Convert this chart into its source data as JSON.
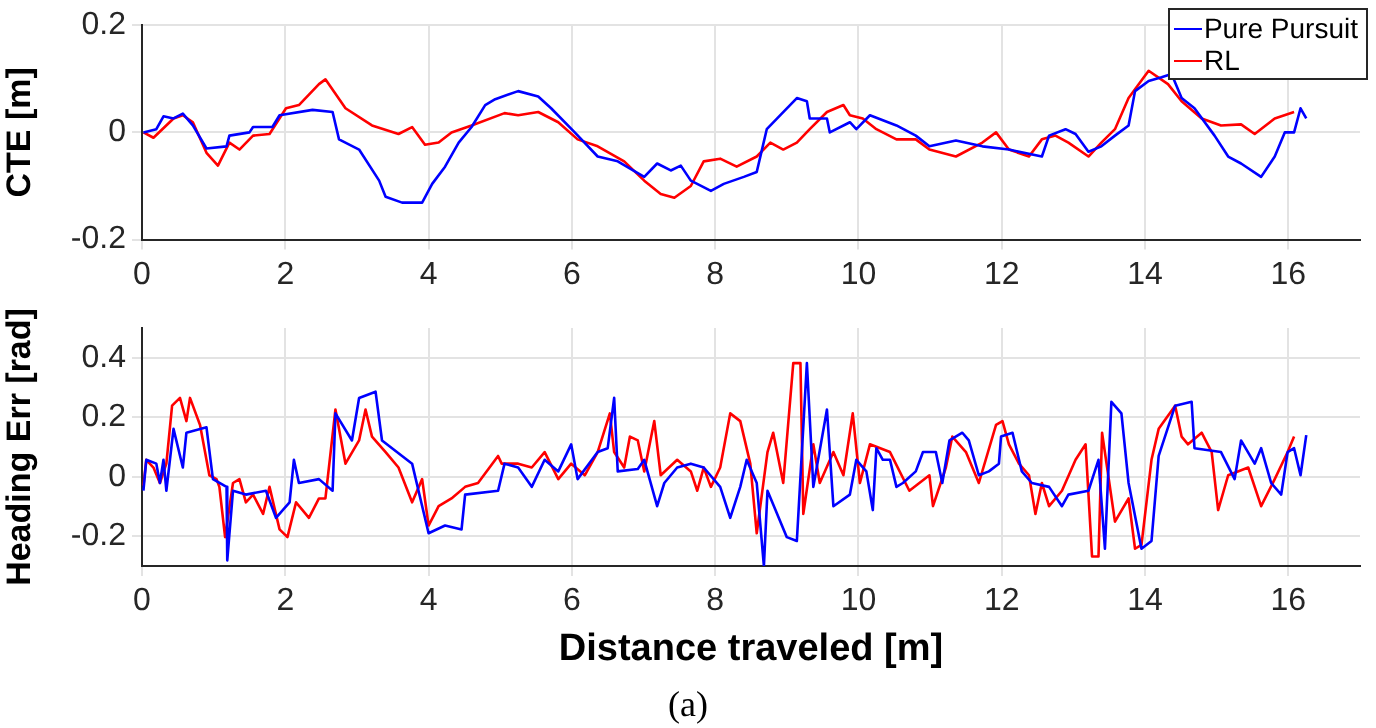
{
  "chart_data": [
    {
      "type": "line",
      "ylabel": "CTE [m]",
      "xlim": [
        0,
        17
      ],
      "xticks": [
        0,
        2,
        4,
        6,
        8,
        10,
        12,
        14,
        16
      ],
      "ylim": [
        -0.2,
        0.2
      ],
      "yticks": [
        -0.2,
        0,
        0.2
      ],
      "grid": true,
      "legend": "top right",
      "series": [
        {
          "name": "Pure Pursuit",
          "color": "#0000ff",
          "x": [
            0.02,
            0.2,
            0.3,
            0.44,
            0.57,
            0.71,
            0.9,
            1.18,
            1.22,
            1.5,
            1.55,
            1.82,
            1.92,
            2.38,
            2.66,
            2.75,
            3.03,
            3.31,
            3.4,
            3.63,
            3.91,
            4.05,
            4.23,
            4.42,
            4.6,
            4.79,
            4.93,
            5.25,
            5.53,
            5.71,
            6.04,
            6.36,
            6.64,
            7.01,
            7.19,
            7.38,
            7.52,
            7.66,
            7.94,
            8.12,
            8.4,
            8.58,
            8.72,
            8.95,
            9.14,
            9.28,
            9.32,
            9.56,
            9.6,
            9.88,
            9.97,
            10.16,
            10.53,
            10.8,
            10.99,
            11.36,
            11.73,
            12.1,
            12.56,
            12.66,
            12.89,
            13.03,
            13.21,
            13.39,
            13.58,
            13.77,
            13.86,
            14.05,
            14.23,
            14.37,
            14.51,
            14.69,
            14.97,
            15.16,
            15.34,
            15.62,
            15.81,
            15.95,
            16.08,
            16.17,
            16.25
          ],
          "values": [
            0,
            0.006,
            0.03,
            0.026,
            0.035,
            0.013,
            -0.03,
            -0.026,
            -0.006,
            0,
            0.01,
            0.01,
            0.032,
            0.042,
            0.038,
            -0.013,
            -0.032,
            -0.09,
            -0.12,
            -0.131,
            -0.131,
            -0.096,
            -0.064,
            -0.019,
            0.01,
            0.051,
            0.062,
            0.077,
            0.067,
            0.045,
            0,
            -0.045,
            -0.054,
            -0.083,
            -0.058,
            -0.071,
            -0.062,
            -0.09,
            -0.109,
            -0.096,
            -0.083,
            -0.074,
            0.006,
            0.038,
            0.064,
            0.058,
            0.026,
            0.026,
            0,
            0.019,
            0.006,
            0.032,
            0.013,
            -0.006,
            -0.026,
            -0.015,
            -0.026,
            -0.032,
            -0.045,
            -0.006,
            0.006,
            -0.003,
            -0.036,
            -0.026,
            -0.006,
            0.013,
            0.077,
            0.096,
            0.103,
            0.109,
            0.064,
            0.045,
            -0.006,
            -0.045,
            -0.058,
            -0.083,
            -0.045,
            0,
            0,
            0.045,
            0.026
          ]
        },
        {
          "name": "RL",
          "color": "#ff0000",
          "x": [
            0.02,
            0.16,
            0.44,
            0.57,
            0.71,
            0.9,
            1.06,
            1.22,
            1.36,
            1.55,
            1.78,
            2.01,
            2.19,
            2.47,
            2.56,
            2.84,
            3.21,
            3.58,
            3.77,
            3.95,
            4.14,
            4.32,
            4.6,
            5.06,
            5.25,
            5.53,
            5.81,
            6.08,
            6.36,
            6.73,
            7.01,
            7.24,
            7.43,
            7.66,
            7.84,
            8.07,
            8.3,
            8.58,
            8.77,
            8.95,
            9.14,
            9.32,
            9.56,
            9.79,
            9.88,
            10.06,
            10.25,
            10.53,
            10.8,
            10.99,
            11.36,
            11.73,
            11.92,
            12.1,
            12.38,
            12.56,
            12.75,
            12.93,
            13.21,
            13.39,
            13.58,
            13.77,
            14.05,
            14.32,
            14.51,
            14.79,
            15.06,
            15.34,
            15.53,
            15.81,
            16.08
          ],
          "values": [
            0,
            -0.01,
            0.026,
            0.032,
            0.019,
            -0.038,
            -0.062,
            -0.019,
            -0.032,
            -0.006,
            -0.003,
            0.045,
            0.051,
            0.09,
            0.099,
            0.045,
            0.013,
            -0.003,
            0.01,
            -0.023,
            -0.019,
            0,
            0.013,
            0.036,
            0.032,
            0.038,
            0.019,
            -0.013,
            -0.026,
            -0.054,
            -0.09,
            -0.115,
            -0.122,
            -0.1,
            -0.054,
            -0.049,
            -0.064,
            -0.045,
            -0.019,
            -0.032,
            -0.019,
            0.006,
            0.038,
            0.051,
            0.032,
            0.026,
            0.006,
            -0.013,
            -0.013,
            -0.032,
            -0.045,
            -0.019,
            0,
            -0.032,
            -0.045,
            -0.013,
            -0.006,
            -0.019,
            -0.045,
            -0.019,
            0.006,
            0.064,
            0.115,
            0.09,
            0.058,
            0.026,
            0.013,
            0.015,
            -0.003,
            0.026,
            0.038
          ]
        }
      ]
    },
    {
      "type": "line",
      "ylabel": "Heading Err [rad]",
      "xlabel": "Distance traveled [m]",
      "annotations": [
        "(a)"
      ],
      "xlim": [
        0,
        17
      ],
      "xticks": [
        0,
        2,
        4,
        6,
        8,
        10,
        12,
        14,
        16
      ],
      "ylim": [
        -0.3,
        0.5
      ],
      "yticks": [
        -0.2,
        0,
        0.2,
        0.4
      ],
      "grid": true,
      "series": [
        {
          "color": "#0000ff",
          "x": [
            0.02,
            0.06,
            0.2,
            0.25,
            0.3,
            0.34,
            0.44,
            0.57,
            0.62,
            0.9,
            0.99,
            1.18,
            1.19,
            1.27,
            1.45,
            1.73,
            1.87,
            2.06,
            2.12,
            2.19,
            2.47,
            2.66,
            2.7,
            2.93,
            3.03,
            3.26,
            3.35,
            3.77,
            4,
            4.23,
            4.46,
            4.51,
            4.97,
            5.06,
            5.25,
            5.44,
            5.62,
            5.81,
            5.99,
            6.08,
            6.36,
            6.5,
            6.59,
            6.64,
            6.92,
            7.01,
            7.19,
            7.29,
            7.47,
            7.66,
            7.84,
            8.07,
            8.21,
            8.35,
            8.44,
            8.58,
            8.68,
            8.73,
            9,
            9.14,
            9.28,
            9.37,
            9.56,
            9.65,
            9.88,
            9.97,
            10.11,
            10.2,
            10.25,
            10.34,
            10.44,
            10.53,
            10.62,
            10.8,
            10.9,
            11.08,
            11.17,
            11.27,
            11.45,
            11.54,
            11.68,
            11.82,
            11.96,
            11.99,
            12.15,
            12.28,
            12.42,
            12.66,
            12.84,
            12.93,
            13.21,
            13.35,
            13.44,
            13.53,
            13.67,
            13.77,
            13.95,
            14.09,
            14.19,
            14.42,
            14.65,
            14.69,
            15.06,
            15.25,
            15.34,
            15.53,
            15.62,
            15.76,
            15.9,
            15.99,
            16.08,
            16.17,
            16.25
          ],
          "values": [
            -0.047,
            0.057,
            0.044,
            -0.021,
            0.057,
            -0.047,
            0.161,
            0.031,
            0.148,
            0.166,
            -0.008,
            -0.034,
            -0.281,
            -0.047,
            -0.06,
            -0.047,
            -0.138,
            -0.086,
            0.057,
            -0.021,
            -0.008,
            -0.047,
            0.213,
            0.122,
            0.265,
            0.286,
            0.122,
            0.044,
            -0.19,
            -0.164,
            -0.177,
            -0.06,
            -0.047,
            0.044,
            0.031,
            -0.034,
            0.057,
            0.018,
            0.109,
            -0.008,
            0.083,
            0.096,
            0.265,
            0.018,
            0.026,
            0.057,
            -0.099,
            -0.021,
            0.031,
            0.044,
            0.031,
            -0.034,
            -0.138,
            -0.034,
            0.057,
            -0.021,
            -0.3,
            -0.047,
            -0.203,
            -0.216,
            0.382,
            -0.034,
            0.226,
            -0.099,
            -0.06,
            0.057,
            0.018,
            -0.112,
            0.096,
            0.057,
            0.057,
            -0.034,
            -0.021,
            0.018,
            0.083,
            0.083,
            -0.021,
            0.122,
            0.148,
            0.122,
            0.005,
            0.018,
            0.044,
            0.135,
            0.148,
            0.018,
            -0.021,
            -0.034,
            -0.099,
            -0.06,
            -0.047,
            0.057,
            -0.242,
            0.252,
            0.213,
            -0.021,
            -0.242,
            -0.216,
            0.07,
            0.239,
            0.252,
            0.096,
            0.083,
            -0.008,
            0.122,
            0.044,
            0.096,
            -0.021,
            -0.06,
            0.083,
            0.096,
            0.005,
            0.14
          ]
        },
        {
          "color": "#ff0000",
          "x": [
            0.02,
            0.06,
            0.16,
            0.25,
            0.34,
            0.42,
            0.53,
            0.62,
            0.67,
            0.81,
            0.94,
            1.04,
            1.08,
            1.16,
            1.27,
            1.36,
            1.45,
            1.55,
            1.69,
            1.78,
            1.92,
            2.03,
            2.15,
            2.33,
            2.47,
            2.56,
            2.7,
            2.84,
            3.03,
            3.12,
            3.21,
            3.4,
            3.58,
            3.77,
            3.91,
            4,
            4.14,
            4.32,
            4.51,
            4.69,
            4.97,
            5.02,
            5.25,
            5.44,
            5.62,
            5.81,
            5.99,
            6.18,
            6.36,
            6.53,
            6.59,
            6.73,
            6.81,
            6.92,
            7.01,
            7.15,
            7.24,
            7.47,
            7.66,
            7.75,
            7.84,
            7.94,
            8.07,
            8.21,
            8.35,
            8.49,
            8.58,
            8.73,
            8.81,
            8.95,
            9.09,
            9.19,
            9.23,
            9.37,
            9.46,
            9.65,
            9.79,
            9.92,
            10.02,
            10.16,
            10.44,
            10.71,
            10.99,
            11.04,
            11.22,
            11.31,
            11.5,
            11.68,
            11.92,
            12.01,
            12.1,
            12.24,
            12.38,
            12.47,
            12.56,
            12.66,
            12.84,
            13.03,
            13.17,
            13.26,
            13.35,
            13.4,
            13.58,
            13.77,
            13.86,
            13.95,
            14.09,
            14.19,
            14.42,
            14.51,
            14.6,
            14.79,
            14.93,
            15.02,
            15.16,
            15.44,
            15.62,
            15.81,
            15.99,
            16.08
          ],
          "values": [
            -0.03,
            0.057,
            0.031,
            -0.021,
            0.044,
            0.239,
            0.265,
            0.187,
            0.265,
            0.174,
            0.005,
            -0.008,
            -0.034,
            -0.203,
            -0.021,
            -0.008,
            -0.086,
            -0.06,
            -0.125,
            -0.034,
            -0.177,
            -0.203,
            -0.086,
            -0.138,
            -0.073,
            -0.073,
            0.226,
            0.044,
            0.122,
            0.226,
            0.135,
            0.083,
            0.031,
            -0.086,
            -0.008,
            -0.164,
            -0.099,
            -0.073,
            -0.034,
            -0.021,
            0.07,
            0.044,
            0.044,
            0.031,
            0.083,
            -0.008,
            0.044,
            0.005,
            0.083,
            0.213,
            0.083,
            0.031,
            0.135,
            0.122,
            0.018,
            0.187,
            0.005,
            0.057,
            0.018,
            -0.047,
            0.031,
            -0.034,
            0.031,
            0.213,
            0.187,
            0.044,
            -0.19,
            0.083,
            0.148,
            -0.021,
            0.382,
            0.382,
            -0.125,
            0.109,
            -0.021,
            0.083,
            0.005,
            0.213,
            -0.021,
            0.109,
            0.083,
            -0.047,
            0.005,
            -0.099,
            0.031,
            0.135,
            0.083,
            -0.021,
            0.174,
            0.187,
            0.109,
            0.044,
            0.005,
            -0.125,
            -0.021,
            -0.099,
            -0.047,
            0.057,
            0.109,
            -0.268,
            -0.268,
            0.148,
            -0.151,
            -0.073,
            -0.242,
            -0.229,
            0.057,
            0.161,
            0.239,
            0.135,
            0.109,
            0.148,
            0.083,
            -0.112,
            0.005,
            0.031,
            -0.099,
            -0.008,
            0.083,
            0.135
          ]
        }
      ]
    }
  ]
}
